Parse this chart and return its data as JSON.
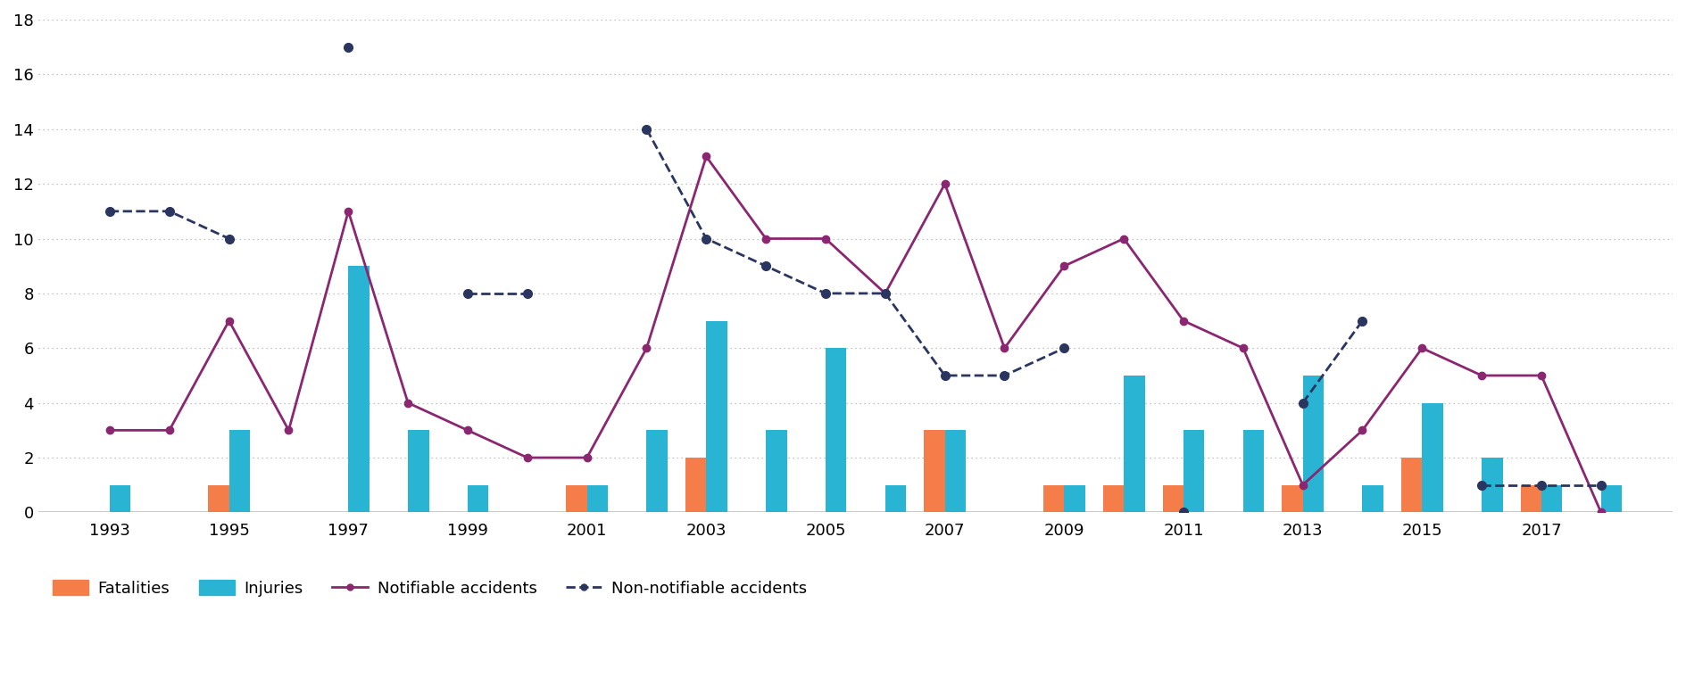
{
  "years": [
    1993,
    1994,
    1995,
    1996,
    1997,
    1998,
    1999,
    2000,
    2001,
    2002,
    2003,
    2004,
    2005,
    2006,
    2007,
    2008,
    2009,
    2010,
    2011,
    2012,
    2013,
    2014,
    2015,
    2016,
    2017,
    2018
  ],
  "fatalities": [
    0,
    0,
    1,
    0,
    0,
    0,
    0,
    0,
    1,
    0,
    2,
    0,
    0,
    0,
    3,
    0,
    1,
    1,
    1,
    0,
    1,
    0,
    2,
    0,
    1,
    0
  ],
  "injuries": [
    1,
    0,
    3,
    0,
    9,
    3,
    1,
    0,
    1,
    3,
    7,
    3,
    6,
    1,
    3,
    0,
    1,
    5,
    3,
    3,
    5,
    1,
    4,
    2,
    1,
    1
  ],
  "notifiable": [
    3,
    3,
    7,
    3,
    11,
    4,
    3,
    2,
    2,
    6,
    13,
    10,
    10,
    8,
    12,
    6,
    9,
    10,
    7,
    6,
    1,
    3,
    6,
    5,
    5,
    0
  ],
  "non_notifiable": [
    11,
    11,
    10,
    null,
    17,
    null,
    8,
    8,
    null,
    14,
    10,
    9,
    8,
    8,
    5,
    5,
    6,
    null,
    0,
    null,
    4,
    7,
    null,
    1,
    1,
    1
  ],
  "fatalities_color": "#f47d4a",
  "injuries_color": "#29b4d4",
  "notifiable_color": "#8b2670",
  "non_notifiable_color": "#2b3660",
  "background_color": "#ffffff",
  "ylim": [
    0,
    18
  ],
  "yticks": [
    0,
    2,
    4,
    6,
    8,
    10,
    12,
    14,
    16,
    18
  ],
  "xtick_years": [
    1993,
    1995,
    1997,
    1999,
    2001,
    2003,
    2005,
    2007,
    2009,
    2011,
    2013,
    2015,
    2017
  ]
}
